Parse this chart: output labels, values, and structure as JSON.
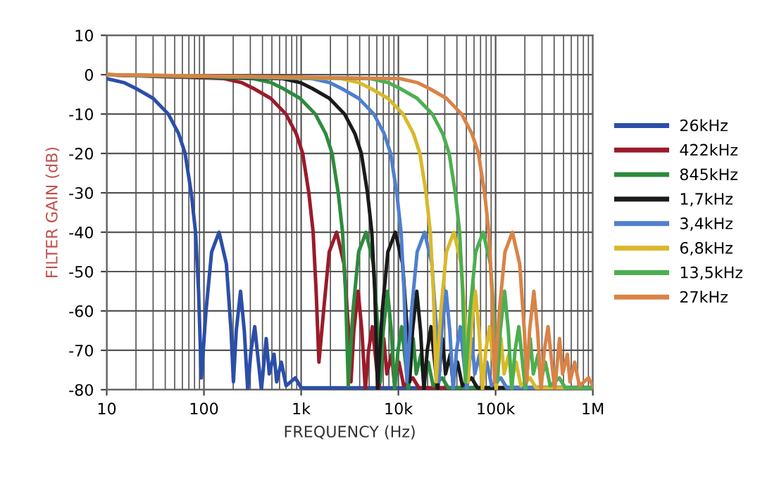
{
  "chart_data": {
    "type": "line",
    "xlabel": "FREQUENCY (Hz)",
    "ylabel": "FILTER GAIN (dB)",
    "log": "x",
    "xlim": [
      10,
      1000000
    ],
    "ylim": [
      -80,
      10
    ],
    "xticks": [
      10,
      100,
      {
        "value": 1000,
        "label": "1k"
      },
      {
        "value": 10000,
        "label": "10k"
      },
      {
        "value": 100000,
        "label": "100k"
      },
      {
        "value": 1000000,
        "label": "1M"
      }
    ],
    "yticks": [
      -80,
      -70,
      -60,
      -50,
      -40,
      -30,
      -20,
      -10,
      0,
      10
    ],
    "grid": true,
    "legend": "right",
    "marker": "none",
    "line_style": "solid",
    "series": [
      {
        "name": "26kHz",
        "color": "#2b4fa8",
        "x": [
          10,
          15,
          20,
          30,
          43,
          55,
          64,
          74,
          82,
          88,
          94,
          105,
          120,
          143,
          170,
          190,
          201,
          215,
          238,
          260,
          282,
          305,
          333,
          360,
          390,
          437,
          470,
          526,
          560,
          625,
          700,
          870,
          1000,
          1000000
        ],
        "values": [
          -1,
          -2,
          -3.5,
          -6,
          -10,
          -15,
          -20,
          -30,
          -40,
          -55,
          -77,
          -60,
          -45,
          -40,
          -48,
          -65,
          -78,
          -65,
          -55,
          -65,
          -80,
          -70,
          -64,
          -72,
          -80,
          -67,
          -76,
          -71,
          -78,
          -73,
          -79,
          -77,
          -79.5,
          -79.5
        ]
      },
      {
        "name": "422kHz",
        "color": "#9b1b2a",
        "x": [
          10,
          162,
          243,
          324,
          486,
          697,
          891,
          1037,
          1199,
          1328,
          1426,
          1523,
          1701,
          1944,
          2317,
          2754,
          3078,
          3256,
          3483,
          3856,
          4212,
          4568,
          4941,
          5395,
          5832,
          6318,
          7079,
          7614,
          8521,
          9072,
          10125,
          11340,
          14094,
          16200,
          1000000
        ],
        "values": [
          0,
          -1,
          -2,
          -3.5,
          -6,
          -10,
          -15,
          -20,
          -30,
          -40,
          -55,
          -73,
          -60,
          -45,
          -40,
          -48,
          -65,
          -78,
          -65,
          -55,
          -65,
          -80,
          -70,
          -64,
          -72,
          -80,
          -67,
          -76,
          -71,
          -78,
          -73,
          -79,
          -77,
          -79.5,
          -79.5
        ]
      },
      {
        "name": "845kHz",
        "color": "#2e8b3e",
        "x": [
          10,
          325,
          488,
          650,
          975,
          1398,
          1788,
          2080,
          2405,
          2665,
          2860,
          3055,
          3413,
          3900,
          4648,
          5525,
          6175,
          6533,
          6988,
          7735,
          8450,
          9165,
          9913,
          10823,
          11700,
          12675,
          14203,
          15275,
          17095,
          18200,
          20313,
          22750,
          28275,
          32500,
          1000000
        ],
        "values": [
          0,
          -1,
          -2,
          -3.5,
          -6,
          -10,
          -15,
          -20,
          -30,
          -40,
          -55,
          -79,
          -60,
          -45,
          -40,
          -48,
          -65,
          -78,
          -65,
          -55,
          -65,
          -80,
          -70,
          -64,
          -72,
          -80,
          -67,
          -76,
          -71,
          -78,
          -73,
          -79,
          -77,
          -79.5,
          -79.5
        ]
      },
      {
        "name": "1,7kHz",
        "color": "#1a1a1a",
        "x": [
          10,
          650,
          975,
          1300,
          1950,
          2795,
          3575,
          4160,
          4810,
          5330,
          5720,
          6110,
          6825,
          7800,
          9295,
          11050,
          12350,
          13065,
          13975,
          15470,
          16900,
          18330,
          19825,
          21645,
          23400,
          25350,
          28405,
          30550,
          34190,
          36400,
          40625,
          45500,
          56550,
          65000,
          1000000
        ],
        "values": [
          0,
          -1,
          -2,
          -3.5,
          -6,
          -10,
          -15,
          -20,
          -30,
          -40,
          -55,
          -80,
          -60,
          -45,
          -40,
          -48,
          -65,
          -78,
          -65,
          -55,
          -65,
          -80,
          -70,
          -64,
          -72,
          -80,
          -67,
          -76,
          -71,
          -78,
          -73,
          -79,
          -77,
          -79.5,
          -79.5
        ]
      },
      {
        "name": "3,4kHz",
        "color": "#4f7fcf",
        "x": [
          10,
          1300,
          1950,
          2600,
          3900,
          5590,
          7150,
          8320,
          9620,
          10660,
          11440,
          12220,
          13650,
          15600,
          18590,
          22100,
          24700,
          26130,
          27950,
          30940,
          33800,
          36660,
          39650,
          43290,
          46800,
          50700,
          56810,
          61100,
          68380,
          72800,
          81250,
          91000,
          113100,
          130000,
          1000000
        ],
        "values": [
          0,
          -1,
          -2,
          -3.5,
          -6,
          -10,
          -15,
          -20,
          -30,
          -40,
          -55,
          -78,
          -60,
          -45,
          -40,
          -48,
          -65,
          -78,
          -65,
          -55,
          -65,
          -80,
          -70,
          -64,
          -72,
          -80,
          -67,
          -76,
          -71,
          -78,
          -73,
          -79,
          -77,
          -79.5,
          -79.5
        ]
      },
      {
        "name": "6,8kHz",
        "color": "#d9b92a",
        "x": [
          10,
          2600,
          3900,
          5200,
          7800,
          11180,
          14300,
          16640,
          19240,
          21320,
          22880,
          24440,
          27300,
          31200,
          37180,
          44200,
          49400,
          52260,
          55900,
          61880,
          67600,
          73320,
          79300,
          86580,
          93600,
          101400,
          113620,
          122200,
          136760,
          145600,
          162500,
          182000,
          226200,
          260000,
          1000000
        ],
        "values": [
          0,
          -1,
          -2,
          -3.5,
          -6,
          -10,
          -15,
          -20,
          -30,
          -40,
          -55,
          -78,
          -60,
          -45,
          -40,
          -48,
          -65,
          -78,
          -65,
          -55,
          -65,
          -80,
          -70,
          -64,
          -72,
          -80,
          -67,
          -76,
          -71,
          -78,
          -73,
          -79,
          -77,
          -79.5,
          -79.5
        ]
      },
      {
        "name": "13,5kHz",
        "color": "#4caf50",
        "x": [
          10,
          5200,
          7800,
          10400,
          15600,
          22360,
          28600,
          33280,
          38480,
          42640,
          45760,
          48880,
          54600,
          62400,
          74360,
          88400,
          98800,
          104520,
          111800,
          123760,
          135200,
          146640,
          158600,
          173160,
          187200,
          202800,
          227240,
          244400,
          273520,
          291200,
          325000,
          364000,
          452400,
          520000,
          1000000
        ],
        "values": [
          0,
          -1,
          -2,
          -3.5,
          -6,
          -10,
          -15,
          -20,
          -30,
          -40,
          -55,
          -78,
          -60,
          -45,
          -40,
          -48,
          -65,
          -78,
          -65,
          -55,
          -65,
          -80,
          -70,
          -64,
          -72,
          -80,
          -67,
          -76,
          -71,
          -78,
          -73,
          -79,
          -77,
          -79.5,
          -79.5
        ]
      },
      {
        "name": "27kHz",
        "color": "#d98347",
        "x": [
          10,
          10400,
          15600,
          20800,
          31200,
          44720,
          57200,
          66560,
          76960,
          85280,
          91520,
          97760,
          109200,
          124800,
          148720,
          176800,
          197600,
          209040,
          223600,
          247520,
          270400,
          293280,
          317200,
          346320,
          374400,
          405600,
          454480,
          488800,
          547040,
          582400,
          650000,
          728000,
          904800,
          1000000
        ],
        "values": [
          0,
          -1,
          -2,
          -3.5,
          -6,
          -10,
          -15,
          -20,
          -30,
          -40,
          -55,
          -78,
          -60,
          -45,
          -40,
          -48,
          -65,
          -78,
          -65,
          -55,
          -65,
          -80,
          -70,
          -64,
          -72,
          -80,
          -67,
          -76,
          -71,
          -78,
          -73,
          -79,
          -77,
          -79
        ]
      }
    ]
  }
}
